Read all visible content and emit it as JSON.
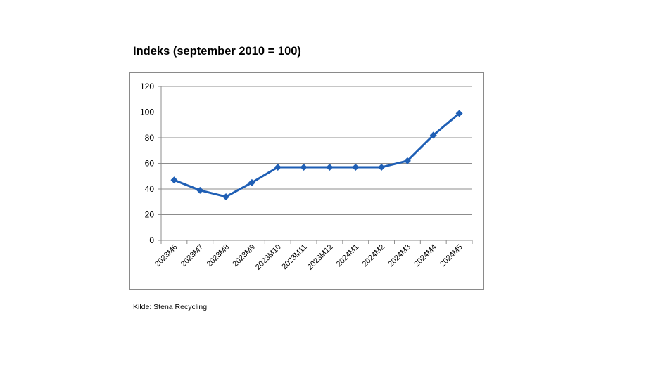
{
  "title": "Indeks (september 2010 = 100)",
  "source": "Kilde: Stena Recycling",
  "chart_data": {
    "type": "line",
    "title": "Indeks (september 2010 = 100)",
    "xlabel": "",
    "ylabel": "",
    "categories": [
      "2023M6",
      "2023M7",
      "2023M8",
      "2023M9",
      "2023M10",
      "2023M11",
      "2023M12",
      "2024M1",
      "2024M2",
      "2024M3",
      "2024M4",
      "2024M5"
    ],
    "series": [
      {
        "values": [
          47,
          39,
          34,
          45,
          57,
          57,
          57,
          57,
          57,
          62,
          82,
          99
        ]
      }
    ],
    "ylim": [
      0,
      120
    ],
    "yticks": [
      "0",
      "20",
      "40",
      "60",
      "80",
      "100",
      "120"
    ],
    "grid": true,
    "legend": "none",
    "colors": {
      "line": "#1f5fb5",
      "grid": "#8c8c8c",
      "axis": "#8c8c8c"
    }
  }
}
